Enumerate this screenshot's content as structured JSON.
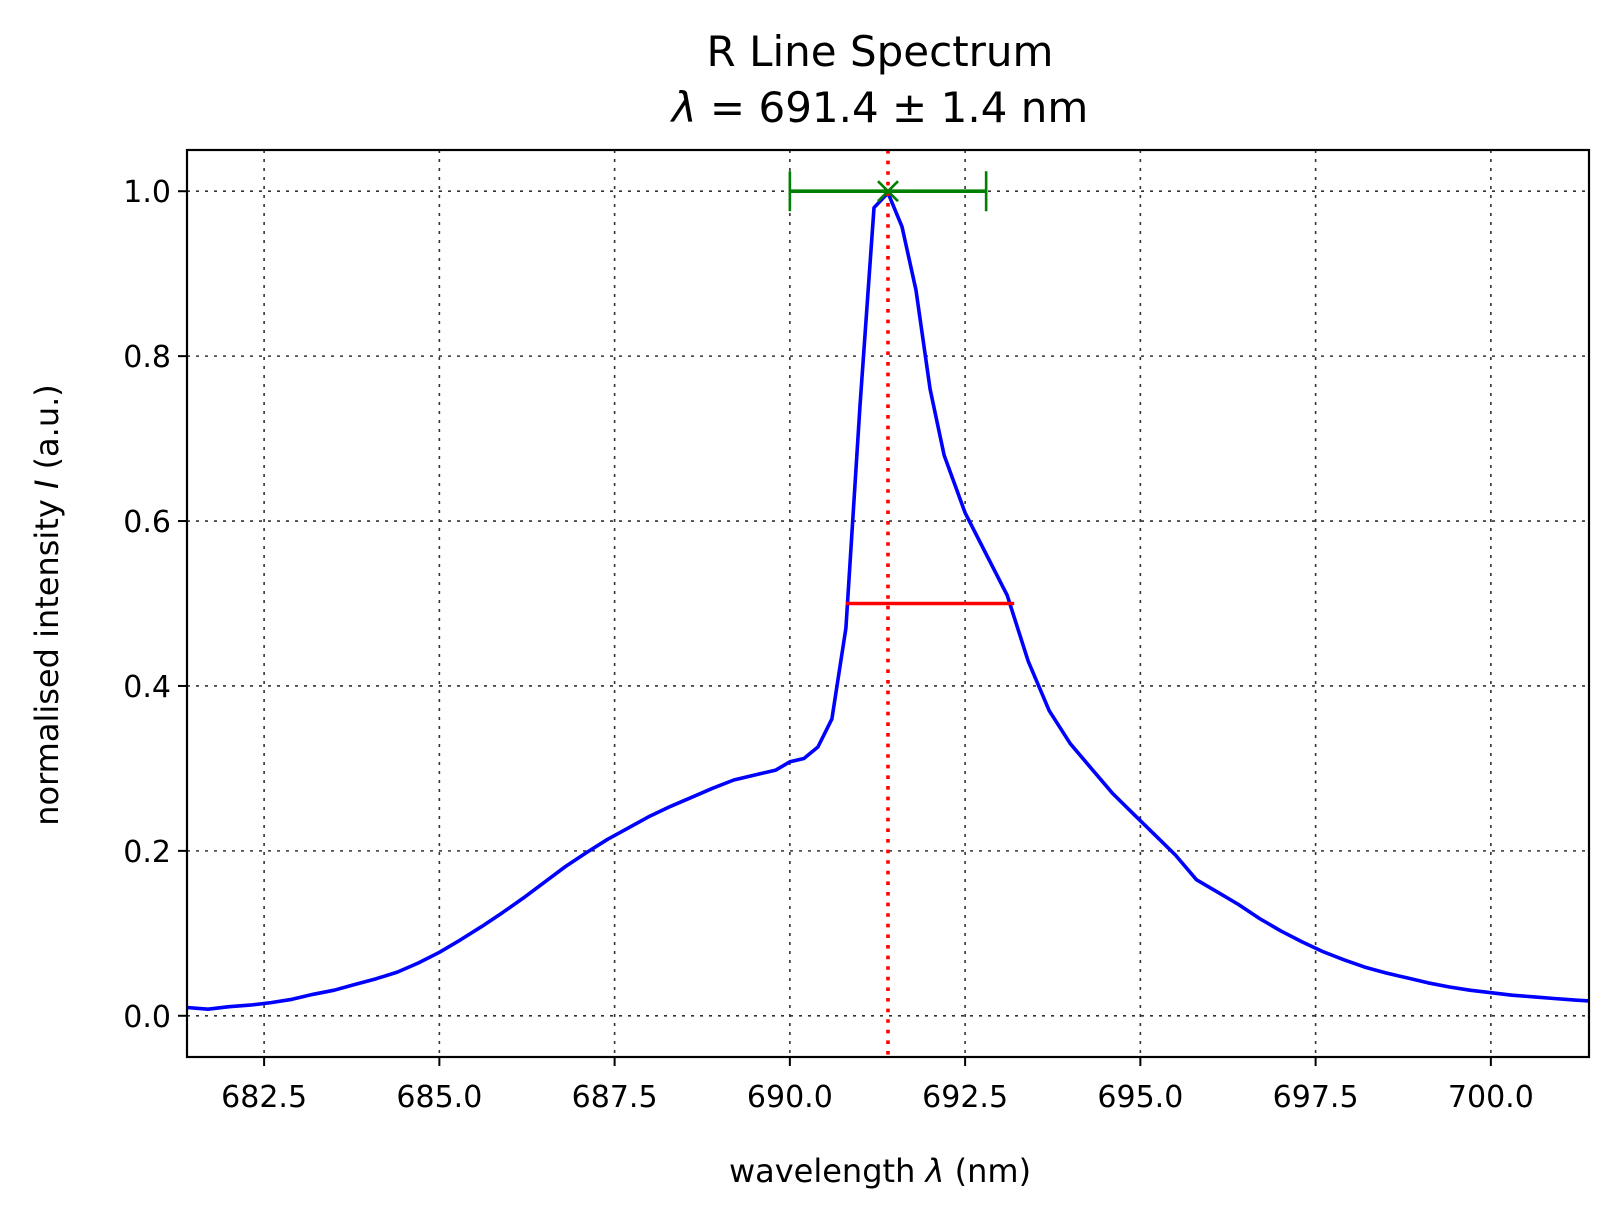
{
  "chart_data": {
    "type": "line",
    "title_line1": "R Line Spectrum",
    "title_line2_symbol": "λ",
    "title_line2_rest": " = 691.4 ± 1.4 nm",
    "xlabel_prefix": "wavelength ",
    "xlabel_symbol": "λ",
    "xlabel_suffix": " (nm)",
    "ylabel_prefix": "normalised intensity ",
    "ylabel_symbol": "I",
    "ylabel_suffix": " (a.u.)",
    "xlim": [
      681.4,
      701.4
    ],
    "ylim": [
      -0.05,
      1.05
    ],
    "xticks": [
      682.5,
      685.0,
      687.5,
      690.0,
      692.5,
      695.0,
      697.5,
      700.0
    ],
    "xtick_labels": [
      "682.5",
      "685.0",
      "687.5",
      "690.0",
      "692.5",
      "695.0",
      "697.5",
      "700.0"
    ],
    "yticks": [
      0.0,
      0.2,
      0.4,
      0.6,
      0.8,
      1.0
    ],
    "ytick_labels": [
      "0.0",
      "0.2",
      "0.4",
      "0.6",
      "0.8",
      "1.0"
    ],
    "grid": true,
    "series": [
      {
        "color": "#0000ff",
        "x": [
          681.4,
          681.7,
          682.0,
          682.3,
          682.6,
          682.9,
          683.2,
          683.5,
          683.8,
          684.1,
          684.4,
          684.7,
          685.0,
          685.3,
          685.6,
          685.9,
          686.2,
          686.5,
          686.8,
          687.1,
          687.4,
          687.7,
          688.0,
          688.3,
          688.6,
          688.9,
          689.2,
          689.5,
          689.8,
          690.0,
          690.2,
          690.4,
          690.6,
          690.8,
          691.0,
          691.2,
          691.4,
          691.6,
          691.8,
          692.0,
          692.2,
          692.5,
          692.8,
          693.1,
          693.4,
          693.7,
          694.0,
          694.3,
          694.6,
          694.9,
          695.2,
          695.5,
          695.8,
          696.1,
          696.4,
          696.7,
          697.0,
          697.3,
          697.6,
          697.9,
          698.2,
          698.5,
          698.8,
          699.1,
          699.4,
          699.7,
          700.0,
          700.3,
          700.6,
          700.9,
          701.2,
          701.4
        ],
        "y": [
          0.01,
          0.008,
          0.011,
          0.013,
          0.016,
          0.02,
          0.026,
          0.031,
          0.038,
          0.045,
          0.053,
          0.064,
          0.077,
          0.092,
          0.108,
          0.125,
          0.143,
          0.162,
          0.181,
          0.198,
          0.214,
          0.228,
          0.242,
          0.254,
          0.265,
          0.276,
          0.286,
          0.292,
          0.298,
          0.308,
          0.312,
          0.326,
          0.36,
          0.47,
          0.74,
          0.98,
          0.998,
          0.957,
          0.88,
          0.76,
          0.68,
          0.61,
          0.56,
          0.51,
          0.43,
          0.37,
          0.33,
          0.3,
          0.27,
          0.245,
          0.22,
          0.195,
          0.165,
          0.15,
          0.135,
          0.118,
          0.103,
          0.09,
          0.078,
          0.068,
          0.059,
          0.052,
          0.046,
          0.04,
          0.035,
          0.031,
          0.028,
          0.025,
          0.023,
          0.021,
          0.019,
          0.018
        ]
      }
    ],
    "peak": {
      "x": 691.4,
      "y": 1.0,
      "xerr": 1.4,
      "color": "#008000",
      "marker": "x"
    },
    "peak_line": {
      "x": 691.4,
      "color": "#ff0000",
      "style": "dotted"
    },
    "fwhm": {
      "x1": 690.8,
      "x2": 693.2,
      "y": 0.5,
      "color": "#ff0000"
    }
  }
}
